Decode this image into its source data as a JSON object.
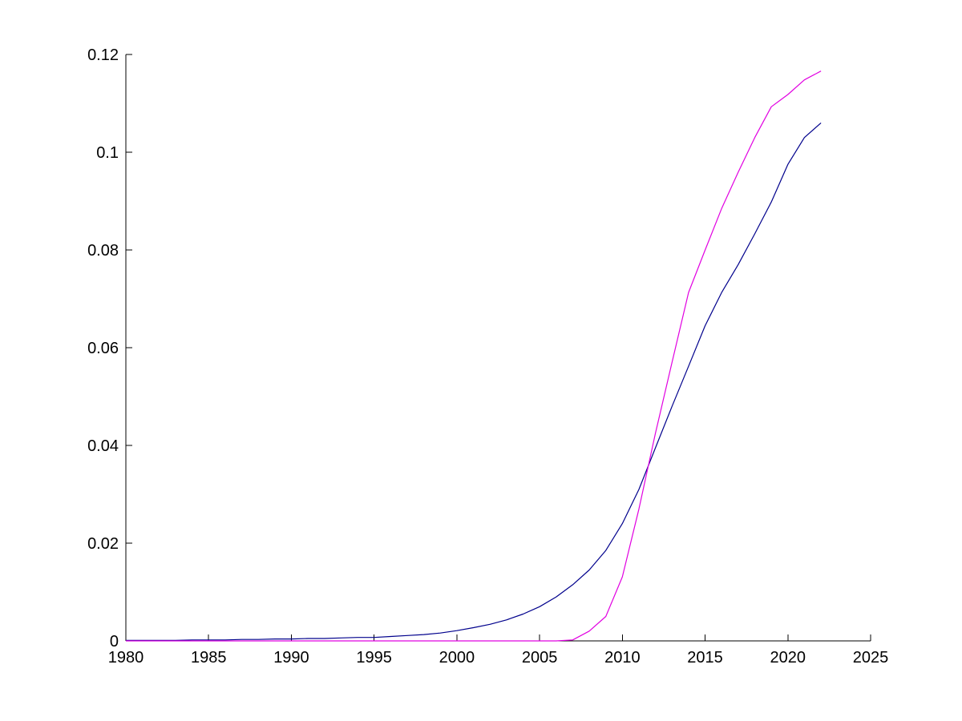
{
  "figure": {
    "background": "#ffffff",
    "axis_color": "#000000",
    "tick_label_color": "#000000"
  },
  "chart_data": {
    "type": "line",
    "title": "",
    "xlabel": "",
    "ylabel": "",
    "grid": false,
    "legend": "none",
    "xlim": [
      1980,
      2025
    ],
    "ylim": [
      0,
      0.12
    ],
    "xticks": [
      1980,
      1985,
      1990,
      1995,
      2000,
      2005,
      2010,
      2015,
      2020,
      2025
    ],
    "xtick_labels": [
      "1980",
      "1985",
      "1990",
      "1995",
      "2000",
      "2005",
      "2010",
      "2015",
      "2020",
      "2025"
    ],
    "yticks": [
      0,
      0.02,
      0.04,
      0.06,
      0.08,
      0.1,
      0.12
    ],
    "ytick_labels": [
      "0",
      "0.02",
      "0.04",
      "0.06",
      "0.08",
      "0.1",
      "0.12"
    ],
    "x": [
      1980,
      1981,
      1982,
      1983,
      1984,
      1985,
      1986,
      1987,
      1988,
      1989,
      1990,
      1991,
      1992,
      1993,
      1994,
      1995,
      1996,
      1997,
      1998,
      1999,
      2000,
      2001,
      2002,
      2003,
      2004,
      2005,
      2006,
      2007,
      2008,
      2009,
      2010,
      2011,
      2012,
      2013,
      2014,
      2015,
      2016,
      2017,
      2018,
      2019,
      2020,
      2021,
      2022
    ],
    "series": [
      {
        "name": "navy-curve",
        "color": "#00008c",
        "values": [
          0.0001,
          0.0001,
          0.0001,
          0.0001,
          0.0002,
          0.0002,
          0.0002,
          0.0003,
          0.0003,
          0.0004,
          0.0004,
          0.0005,
          0.0005,
          0.0006,
          0.0007,
          0.0007,
          0.0009,
          0.0011,
          0.0013,
          0.0016,
          0.0021,
          0.0027,
          0.0034,
          0.0043,
          0.0055,
          0.007,
          0.009,
          0.0115,
          0.0145,
          0.0185,
          0.024,
          0.031,
          0.0395,
          0.048,
          0.0562,
          0.0645,
          0.0713,
          0.077,
          0.0833,
          0.0898,
          0.0975,
          0.103,
          0.106
        ]
      },
      {
        "name": "magenta-curve",
        "color": "#e100e1",
        "values": [
          0,
          0,
          0,
          0,
          0,
          0,
          0,
          0,
          0,
          0,
          0,
          0,
          0,
          0,
          0,
          0,
          0,
          0,
          0,
          0,
          0,
          0,
          0,
          0,
          0,
          0,
          0,
          0.0002,
          0.002,
          0.005,
          0.0131,
          0.027,
          0.0425,
          0.057,
          0.0713,
          0.08,
          0.0885,
          0.0959,
          0.103,
          0.1093,
          0.1118,
          0.1148,
          0.1166
        ]
      }
    ]
  }
}
